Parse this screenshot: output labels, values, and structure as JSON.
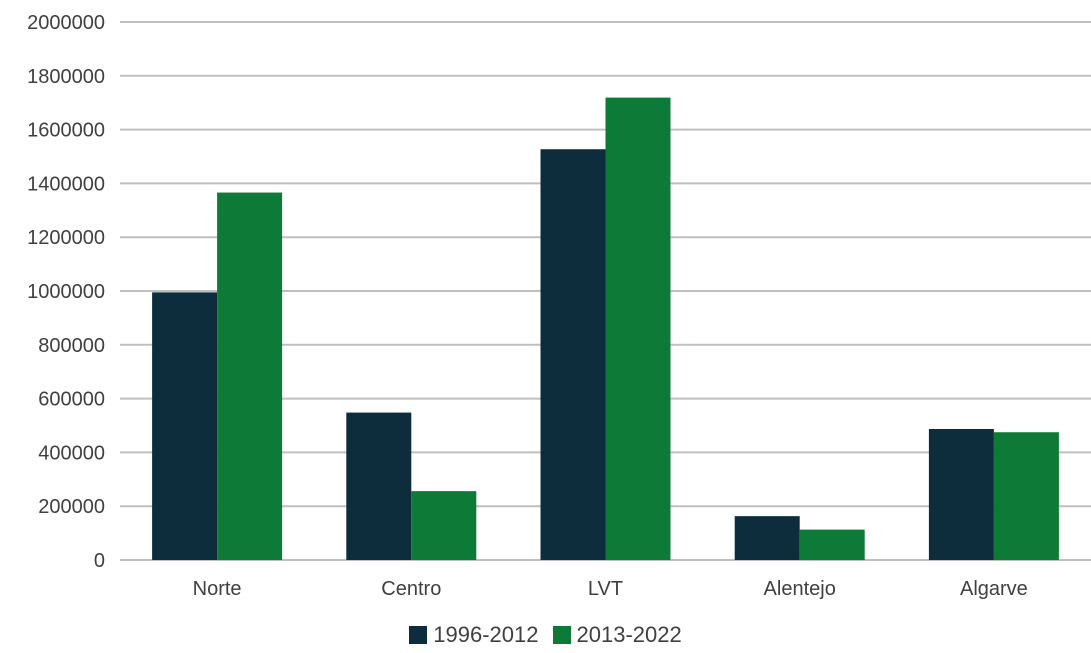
{
  "chart_data": {
    "type": "bar",
    "categories": [
      "Norte",
      "Centro",
      "LVT",
      "Alentejo",
      "Algarve"
    ],
    "series": [
      {
        "name": "1996-2012",
        "color": "#0d2d3d",
        "values": [
          995000,
          548000,
          1527000,
          163000,
          487000
        ]
      },
      {
        "name": "2013-2022",
        "color": "#0e7a38",
        "values": [
          1366000,
          256000,
          1719000,
          113000,
          475000
        ]
      }
    ],
    "ylim": [
      0,
      2000000
    ],
    "yticks": [
      "0",
      "200000",
      "400000",
      "600000",
      "800000",
      "1000000",
      "1200000",
      "1400000",
      "1600000",
      "1800000",
      "2000000"
    ],
    "grid": true,
    "legend_position": "bottom",
    "title": "",
    "xlabel": "",
    "ylabel": ""
  }
}
